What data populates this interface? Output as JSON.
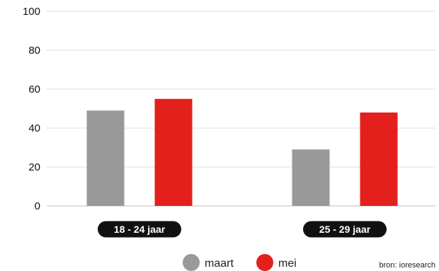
{
  "chart_data": {
    "type": "bar",
    "categories": [
      "18 - 24 jaar",
      "25 - 29 jaar"
    ],
    "series": [
      {
        "name": "maart",
        "color": "#999999",
        "values": [
          49,
          29
        ]
      },
      {
        "name": "mei",
        "color": "#e3201b",
        "values": [
          55,
          48
        ]
      }
    ],
    "ylim": [
      0,
      100
    ],
    "yticks": [
      0,
      20,
      40,
      60,
      80,
      100
    ],
    "grid": true,
    "legend": "bottom",
    "category_label_style": "black-pill"
  },
  "source": "bron: ioresearch"
}
